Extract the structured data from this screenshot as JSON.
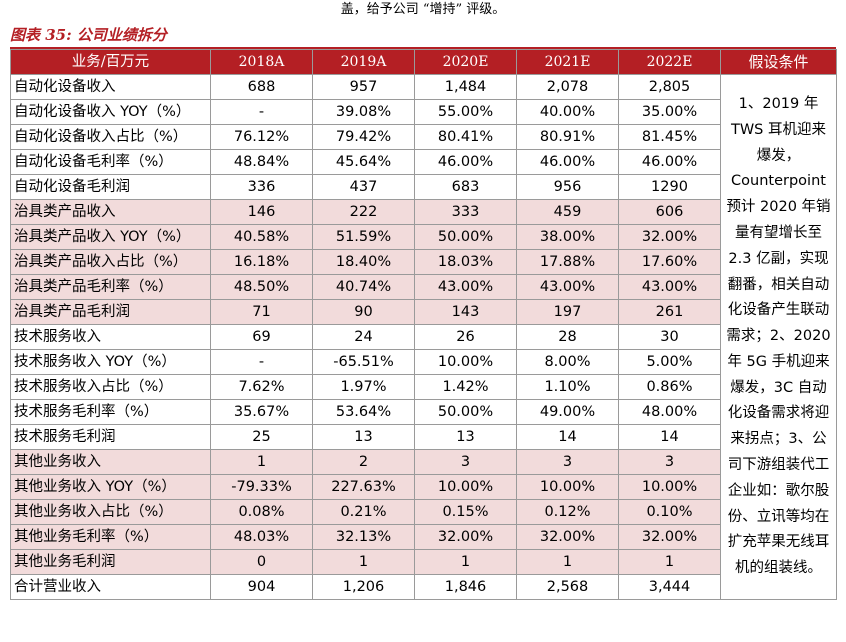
{
  "top_line": "盖，给予公司 “增持” 评级。",
  "caption": "图表 35:  公司业绩拆分",
  "header": {
    "row_label": "业务/百万元",
    "years": [
      "2018A",
      "2019A",
      "2020E",
      "2021E",
      "2022E"
    ],
    "assumption": "假设条件"
  },
  "rows": [
    {
      "label": "自动化设备收入",
      "values": [
        "688",
        "957",
        "1,484",
        "2,078",
        "2,805"
      ],
      "shaded": false
    },
    {
      "label": "自动化设备收入 YOY（%）",
      "values": [
        "-",
        "39.08%",
        "55.00%",
        "40.00%",
        "35.00%"
      ],
      "shaded": false
    },
    {
      "label": "自动化设备收入占比（%）",
      "values": [
        "76.12%",
        "79.42%",
        "80.41%",
        "80.91%",
        "81.45%"
      ],
      "shaded": false
    },
    {
      "label": "自动化设备毛利率（%）",
      "values": [
        "48.84%",
        "45.64%",
        "46.00%",
        "46.00%",
        "46.00%"
      ],
      "shaded": false
    },
    {
      "label": "自动化设备毛利润",
      "values": [
        "336",
        "437",
        "683",
        "956",
        "1290"
      ],
      "shaded": false
    },
    {
      "label": "治具类产品收入",
      "values": [
        "146",
        "222",
        "333",
        "459",
        "606"
      ],
      "shaded": true
    },
    {
      "label": "治具类产品收入 YOY（%）",
      "values": [
        "40.58%",
        "51.59%",
        "50.00%",
        "38.00%",
        "32.00%"
      ],
      "shaded": true
    },
    {
      "label": "治具类产品收入占比（%）",
      "values": [
        "16.18%",
        "18.40%",
        "18.03%",
        "17.88%",
        "17.60%"
      ],
      "shaded": true
    },
    {
      "label": "治具类产品毛利率（%）",
      "values": [
        "48.50%",
        "40.74%",
        "43.00%",
        "43.00%",
        "43.00%"
      ],
      "shaded": true
    },
    {
      "label": "治具类产品毛利润",
      "values": [
        "71",
        "90",
        "143",
        "197",
        "261"
      ],
      "shaded": true
    },
    {
      "label": "技术服务收入",
      "values": [
        "69",
        "24",
        "26",
        "28",
        "30"
      ],
      "shaded": false
    },
    {
      "label": "技术服务收入 YOY（%）",
      "values": [
        "-",
        "-65.51%",
        "10.00%",
        "8.00%",
        "5.00%"
      ],
      "shaded": false
    },
    {
      "label": "技术服务收入占比（%）",
      "values": [
        "7.62%",
        "1.97%",
        "1.42%",
        "1.10%",
        "0.86%"
      ],
      "shaded": false
    },
    {
      "label": "技术服务毛利率（%）",
      "values": [
        "35.67%",
        "53.64%",
        "50.00%",
        "49.00%",
        "48.00%"
      ],
      "shaded": false
    },
    {
      "label": "技术服务毛利润",
      "values": [
        "25",
        "13",
        "13",
        "14",
        "14"
      ],
      "shaded": false
    },
    {
      "label": "其他业务收入",
      "values": [
        "1",
        "2",
        "3",
        "3",
        "3"
      ],
      "shaded": true
    },
    {
      "label": "其他业务收入 YOY（%）",
      "values": [
        "-79.33%",
        "227.63%",
        "10.00%",
        "10.00%",
        "10.00%"
      ],
      "shaded": true
    },
    {
      "label": "其他业务收入占比（%）",
      "values": [
        "0.08%",
        "0.21%",
        "0.15%",
        "0.12%",
        "0.10%"
      ],
      "shaded": true
    },
    {
      "label": "其他业务毛利率（%）",
      "values": [
        "48.03%",
        "32.13%",
        "32.00%",
        "32.00%",
        "32.00%"
      ],
      "shaded": true
    },
    {
      "label": "其他业务毛利润",
      "values": [
        "0",
        "1",
        "1",
        "1",
        "1"
      ],
      "shaded": true
    },
    {
      "label": "合计营业收入",
      "values": [
        "904",
        "1,206",
        "1,846",
        "2,568",
        "3,444"
      ],
      "shaded": false
    }
  ],
  "assumption_text": "1、2019 年 TWS 耳机迎来爆发，Counterpoint 预计 2020 年销量有望增长至 2.3 亿副，实现翻番，相关自动化设备产生联动需求；2、2020 年 5G 手机迎来爆发，3C 自动化设备需求将迎来拐点；3、公司下游组装代工企业如：歌尔股份、立讯等均在扩充苹果无线耳机的组装线。",
  "colors": {
    "accent": "#b41f24",
    "shade": "#f2dbdb",
    "border": "#9a9a9a"
  }
}
